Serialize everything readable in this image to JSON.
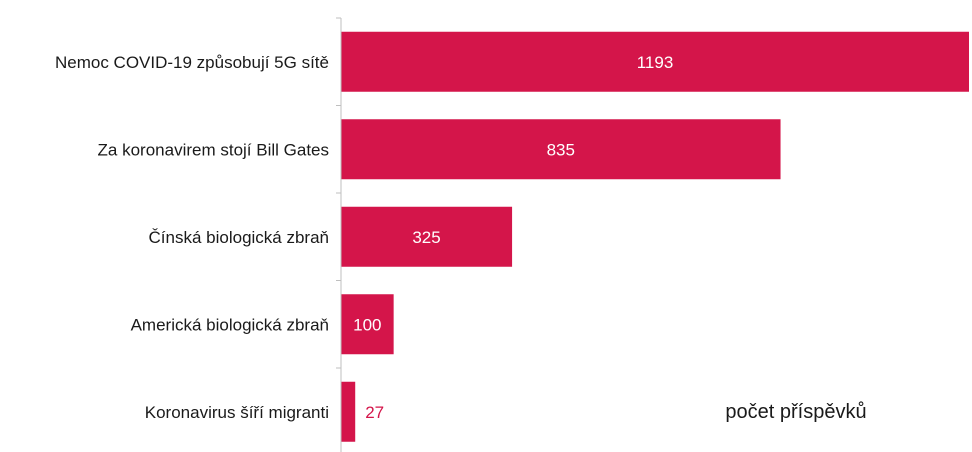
{
  "chart_data": {
    "type": "bar",
    "orientation": "horizontal",
    "categories": [
      "Nemoc COVID-19 způsobují 5G sítě",
      "Za koronavirem stojí Bill Gates",
      "Čínská biologická zbraň",
      "Americká biologická zbraň",
      "Koronavirus šíří migranti"
    ],
    "values": [
      1193,
      835,
      325,
      100,
      27
    ],
    "xlim": [
      0,
      1193
    ],
    "annotation": "počet příspěvků",
    "bar_color": "#d4154a",
    "label_inside_color": "#ffffff",
    "label_outside_color": "#d4154a",
    "grid": false,
    "legend": "none"
  }
}
